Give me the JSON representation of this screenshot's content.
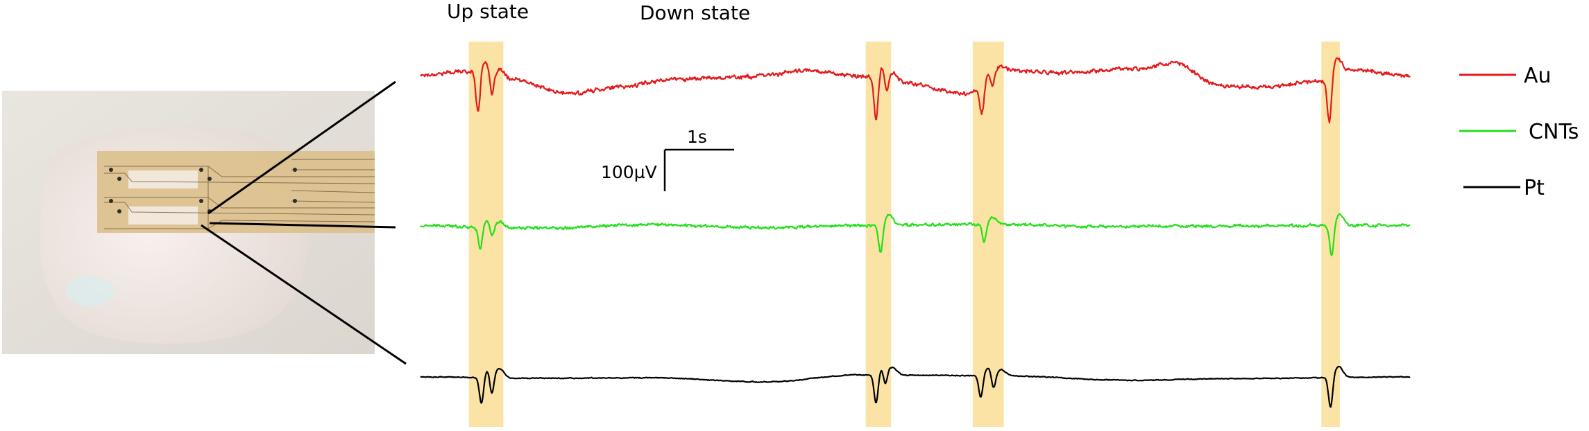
{
  "header": {
    "up_state_label": "Up state",
    "down_state_label": "Down state"
  },
  "photo": {
    "description_icon": "electrode-array-photo-icon"
  },
  "scale_bar": {
    "time_label": "1s",
    "time_seconds": 1,
    "voltage_label": "100µV",
    "voltage_uv": 100
  },
  "colors": {
    "au": "#e31a1c",
    "cnts": "#22e01a",
    "pt": "#000000",
    "highlight": "#fae3a4"
  },
  "chart_data": {
    "type": "line",
    "title": "",
    "xlabel": "",
    "ylabel": "",
    "duration_s": 8.6,
    "grid": false,
    "legend_position": "right",
    "up_state_windows_s": [
      [
        0.42,
        0.72
      ],
      [
        3.87,
        4.09
      ],
      [
        4.8,
        5.07
      ],
      [
        7.83,
        7.99
      ]
    ],
    "series": [
      {
        "name": "Au",
        "color": "#e31a1c",
        "noise_uv": 7,
        "slow_wave": [
          [
            0,
            0
          ],
          [
            0.4,
            8
          ],
          [
            0.75,
            -10
          ],
          [
            1.3,
            -45
          ],
          [
            1.7,
            -30
          ],
          [
            2.2,
            -10
          ],
          [
            2.8,
            -5
          ],
          [
            3.4,
            10
          ],
          [
            3.85,
            -5
          ],
          [
            4.2,
            -20
          ],
          [
            4.75,
            -45
          ],
          [
            5.1,
            10
          ],
          [
            5.6,
            5
          ],
          [
            6.2,
            15
          ],
          [
            6.55,
            28
          ],
          [
            6.95,
            -25
          ],
          [
            7.3,
            -30
          ],
          [
            7.8,
            -15
          ],
          [
            8.1,
            12
          ],
          [
            8.6,
            -2
          ]
        ],
        "events": [
          {
            "t": 0.5,
            "amp": -95
          },
          {
            "t": 0.62,
            "amp": -60
          },
          {
            "t": 3.96,
            "amp": -100
          },
          {
            "t": 4.05,
            "amp": -55
          },
          {
            "t": 4.88,
            "amp": -65
          },
          {
            "t": 4.97,
            "amp": -40
          },
          {
            "t": 7.9,
            "amp": -110
          }
        ]
      },
      {
        "name": "CNTs",
        "color": "#22e01a",
        "noise_uv": 5,
        "slow_wave": [
          [
            0,
            0
          ],
          [
            1.0,
            -5
          ],
          [
            2.0,
            3
          ],
          [
            3.0,
            -4
          ],
          [
            4.0,
            2
          ],
          [
            5.0,
            4
          ],
          [
            6.0,
            -2
          ],
          [
            7.0,
            0
          ],
          [
            8.6,
            1
          ]
        ],
        "events": [
          {
            "t": 0.52,
            "amp": -55
          },
          {
            "t": 0.62,
            "amp": -35
          },
          {
            "t": 4.0,
            "amp": -70
          },
          {
            "t": 4.9,
            "amp": -45
          },
          {
            "t": 7.92,
            "amp": -75
          }
        ]
      },
      {
        "name": "Pt",
        "color": "#000000",
        "noise_uv": 1.5,
        "slow_wave": [
          [
            0,
            0
          ],
          [
            1.0,
            -3
          ],
          [
            2.0,
            -2
          ],
          [
            3.0,
            -12
          ],
          [
            3.8,
            5
          ],
          [
            4.3,
            4
          ],
          [
            5.0,
            3
          ],
          [
            6.2,
            -8
          ],
          [
            7.0,
            -4
          ],
          [
            8.6,
            0
          ]
        ],
        "events": [
          {
            "t": 0.53,
            "amp": -65
          },
          {
            "t": 0.62,
            "amp": -60
          },
          {
            "t": 3.96,
            "amp": -70
          },
          {
            "t": 4.04,
            "amp": -45
          },
          {
            "t": 4.87,
            "amp": -55
          },
          {
            "t": 4.98,
            "amp": -40
          },
          {
            "t": 7.91,
            "amp": -75
          }
        ]
      }
    ]
  }
}
